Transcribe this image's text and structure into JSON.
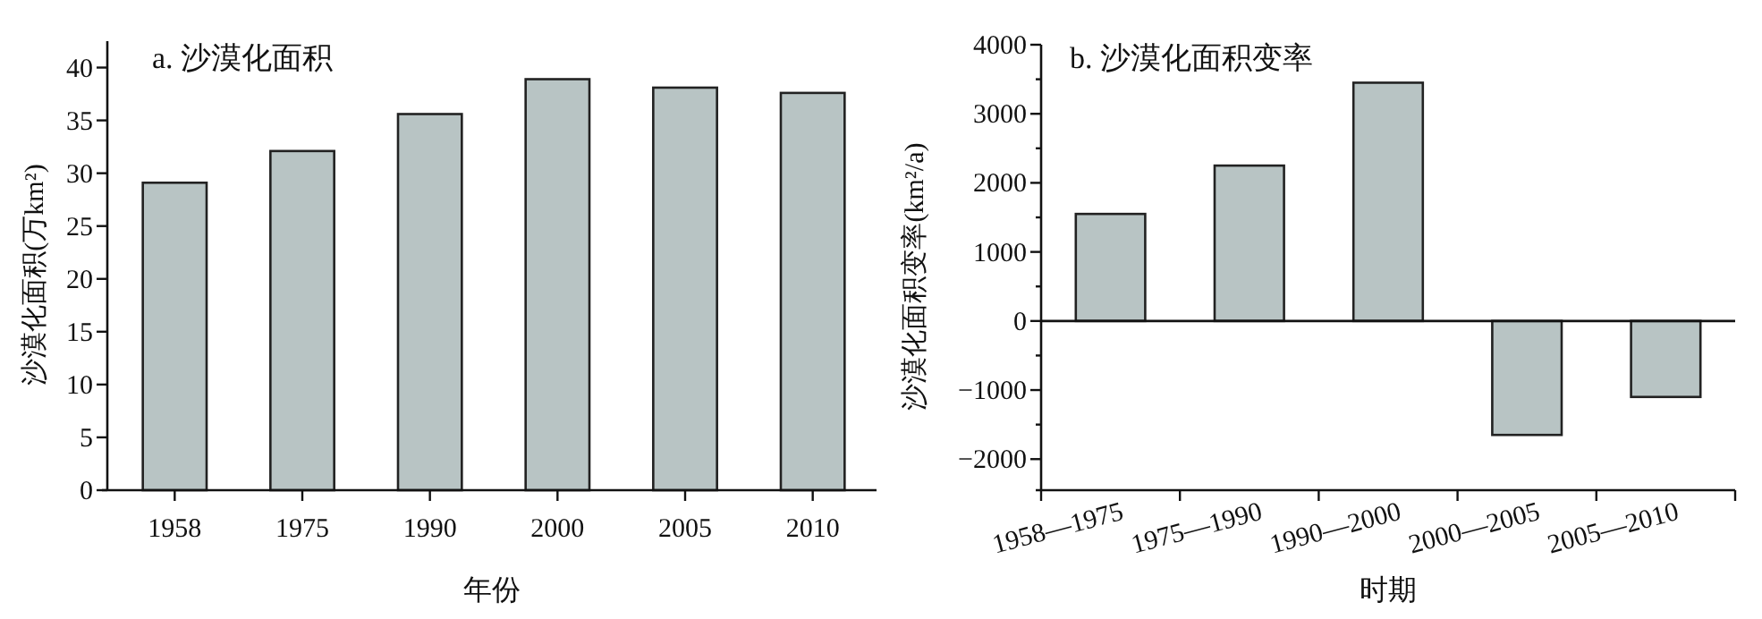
{
  "chart_data": [
    {
      "type": "bar",
      "title": "a. 沙漠化面积",
      "xlabel": "年份",
      "ylabel": "沙漠化面积(万km²)",
      "categories": [
        "1958",
        "1975",
        "1990",
        "2000",
        "2005",
        "2010"
      ],
      "values": [
        29.1,
        32.1,
        35.6,
        38.9,
        38.1,
        37.6
      ],
      "color": "#b8c4c4",
      "ylim": [
        0,
        42.5
      ],
      "yticks": [
        0,
        5,
        10,
        15,
        20,
        25,
        30,
        35,
        40
      ],
      "grid": false
    },
    {
      "type": "bar",
      "title": "b. 沙漠化面积变率",
      "xlabel": "时期",
      "ylabel": "沙漠化面积变率(km²/a)",
      "categories": [
        "1958—1975",
        "1975—1990",
        "1990—2000",
        "2000—2005",
        "2005—2010"
      ],
      "values": [
        1550,
        2250,
        3450,
        -1650,
        -1100
      ],
      "color": "#b8c4c4",
      "ylim": [
        -2450,
        4000
      ],
      "yticks": [
        {
          "value": -2000,
          "label": "−2000"
        },
        {
          "value": -1500,
          "label": null
        },
        {
          "value": -1000,
          "label": "−1000"
        },
        {
          "value": -500,
          "label": null
        },
        0,
        {
          "value": 500,
          "label": null
        },
        1000,
        {
          "value": 1500,
          "label": null
        },
        2000,
        {
          "value": 2500,
          "label": null
        },
        3000,
        {
          "value": 3500,
          "label": null
        },
        4000
      ],
      "ref_lines": [
        {
          "axis": "y",
          "value": 0
        }
      ],
      "grid": false
    }
  ]
}
